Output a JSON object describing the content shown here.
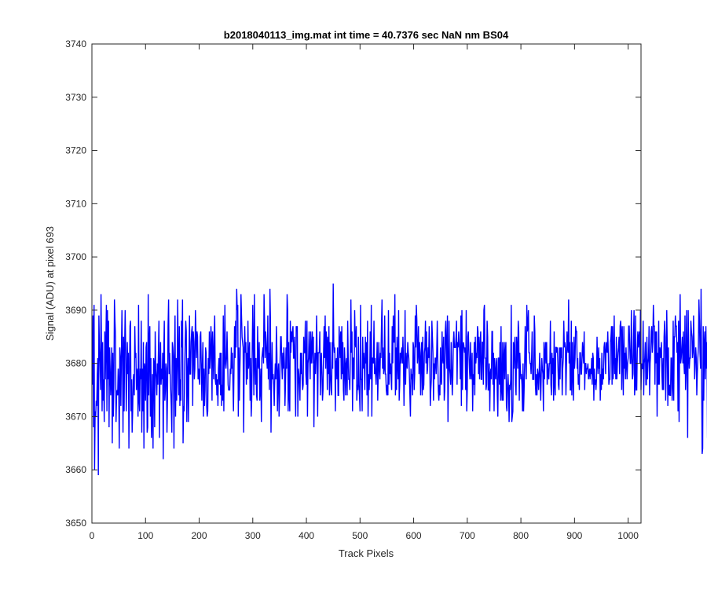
{
  "chart_data": {
    "type": "line",
    "title": "b2018040113_img.mat int time = 40.7376 sec  NaN nm BS04",
    "xlabel": "Track Pixels",
    "ylabel": "Signal (ADU) at pixel 693",
    "xlim": [
      0,
      1024
    ],
    "ylim": [
      3650,
      3740
    ],
    "xticks": [
      0,
      100,
      200,
      300,
      400,
      500,
      600,
      700,
      800,
      900,
      1000
    ],
    "yticks": [
      3650,
      3660,
      3670,
      3680,
      3690,
      3700,
      3710,
      3720,
      3730,
      3740
    ],
    "grid": false,
    "legend": "none",
    "series_color": "#0000ff",
    "series": [
      {
        "x_start": 1,
        "x_step": 1,
        "y": [
          3676,
          3689,
          3668,
          3691,
          3660,
          3671,
          3670,
          3673,
          3672,
          3678,
          3681,
          3659,
          3689,
          3683,
          3680,
          3675,
          3693,
          3682,
          3671,
          3684,
          3673,
          3677,
          3669,
          3686,
          3677,
          3684,
          3691,
          3671,
          3690,
          3677,
          3688,
          3668,
          3683,
          3679,
          3674,
          3677,
          3683,
          3665,
          3682,
          3670,
          3676,
          3692,
          3688,
          3685,
          3669,
          3674,
          3675,
          3674,
          3679,
          3676,
          3664,
          3683,
          3681,
          3672,
          3682,
          3690,
          3681,
          3667,
          3685,
          3671,
          3683,
          3690,
          3683,
          3671,
          3677,
          3684,
          3678,
          3682,
          3664,
          3677,
          3687,
          3688,
          3671,
          3677,
          3667,
          3671,
          3677,
          3678,
          3674,
          3687,
          3681,
          3682,
          3675,
          3678,
          3679,
          3670,
          3691,
          3673,
          3671,
          3679,
          3677,
          3688,
          3667,
          3679,
          3671,
          3684,
          3664,
          3680,
          3679,
          3673,
          3683,
          3684,
          3667,
          3668,
          3693,
          3674,
          3684,
          3687,
          3670,
          3681,
          3666,
          3670,
          3678,
          3664,
          3681,
          3680,
          3668,
          3686,
          3679,
          3677,
          3674,
          3680,
          3676,
          3682,
          3688,
          3666,
          3679,
          3684,
          3676,
          3679,
          3677,
          3682,
          3662,
          3682,
          3688,
          3673,
          3675,
          3680,
          3679,
          3667,
          3674,
          3687,
          3692,
          3678,
          3682,
          3678,
          3675,
          3672,
          3667,
          3684,
          3683,
          3681,
          3664,
          3681,
          3689,
          3670,
          3681,
          3673,
          3679,
          3692,
          3680,
          3674,
          3687,
          3672,
          3677,
          3673,
          3688,
          3683,
          3692,
          3665,
          3672,
          3671,
          3679,
          3684,
          3688,
          3686,
          3669,
          3678,
          3681,
          3669,
          3680,
          3689,
          3678,
          3678,
          3684,
          3686,
          3687,
          3672,
          3686,
          3684,
          3677,
          3679,
          3690,
          3686,
          3681,
          3686,
          3685,
          3677,
          3679,
          3677,
          3676,
          3685,
          3686,
          3679,
          3673,
          3680,
          3684,
          3670,
          3679,
          3672,
          3675,
          3683,
          3682,
          3672,
          3670,
          3671,
          3681,
          3678,
          3686,
          3679,
          3681,
          3687,
          3684,
          3673,
          3686,
          3682,
          3677,
          3685,
          3689,
          3677,
          3676,
          3678,
          3674,
          3677,
          3672,
          3679,
          3681,
          3676,
          3682,
          3674,
          3682,
          3672,
          3676,
          3673,
          3689,
          3671,
          3683,
          3691,
          3680,
          3679,
          3681,
          3686,
          3681,
          3676,
          3675,
          3675,
          3675,
          3679,
          3678,
          3683,
          3679,
          3682,
          3676,
          3671,
          3679,
          3687,
          3681,
          3688,
          3683,
          3694,
          3690,
          3691,
          3670,
          3683,
          3673,
          3679,
          3684,
          3693,
          3689,
          3685,
          3684,
          3683,
          3667,
          3680,
          3687,
          3682,
          3684,
          3676,
          3682,
          3677,
          3688,
          3679,
          3681,
          3684,
          3673,
          3681,
          3670,
          3673,
          3683,
          3691,
          3683,
          3674,
          3693,
          3680,
          3676,
          3681,
          3674,
          3673,
          3687,
          3680,
          3679,
          3684,
          3673,
          3675,
          3679,
          3669,
          3681,
          3682,
          3683,
          3680,
          3693,
          3688,
          3681,
          3686,
          3684,
          3681,
          3679,
          3689,
          3677,
          3682,
          3675,
          3694,
          3688,
          3667,
          3677,
          3684,
          3677,
          3678,
          3676,
          3672,
          3677,
          3680,
          3677,
          3687,
          3682,
          3671,
          3678,
          3680,
          3670,
          3674,
          3681,
          3685,
          3685,
          3680,
          3677,
          3682,
          3679,
          3683,
          3680,
          3672,
          3676,
          3683,
          3679,
          3693,
          3690,
          3671,
          3684,
          3674,
          3671,
          3688,
          3682,
          3686,
          3684,
          3686,
          3687,
          3681,
          3681,
          3685,
          3676,
          3670,
          3687,
          3686,
          3687,
          3670,
          3679,
          3678,
          3676,
          3673,
          3682,
          3678,
          3682,
          3677,
          3675,
          3676,
          3685,
          3682,
          3682,
          3688,
          3678,
          3676,
          3688,
          3670,
          3680,
          3681,
          3686,
          3681,
          3677,
          3686,
          3680,
          3683,
          3686,
          3680,
          3685,
          3668,
          3678,
          3682,
          3678,
          3681,
          3689,
          3682,
          3670,
          3682,
          3682,
          3682,
          3686,
          3674,
          3679,
          3682,
          3678,
          3673,
          3675,
          3682,
          3687,
          3681,
          3689,
          3679,
          3686,
          3684,
          3675,
          3685,
          3678,
          3687,
          3674,
          3684,
          3678,
          3675,
          3674,
          3684,
          3679,
          3695,
          3684,
          3682,
          3683,
          3671,
          3680,
          3681,
          3677,
          3683,
          3674,
          3674,
          3687,
          3684,
          3681,
          3686,
          3677,
          3687,
          3678,
          3684,
          3675,
          3673,
          3683,
          3680,
          3674,
          3680,
          3681,
          3674,
          3688,
          3681,
          3677,
          3677,
          3675,
          3682,
          3692,
          3682,
          3686,
          3671,
          3681,
          3681,
          3677,
          3690,
          3684,
          3683,
          3687,
          3673,
          3676,
          3675,
          3685,
          3676,
          3674,
          3671,
          3691,
          3677,
          3677,
          3671,
          3685,
          3679,
          3682,
          3680,
          3675,
          3685,
          3680,
          3684,
          3674,
          3688,
          3670,
          3678,
          3675,
          3678,
          3686,
          3677,
          3691,
          3670,
          3681,
          3681,
          3680,
          3688,
          3678,
          3681,
          3678,
          3676,
          3680,
          3684,
          3673,
          3678,
          3684,
          3679,
          3677,
          3682,
          3681,
          3687,
          3692,
          3679,
          3683,
          3678,
          3679,
          3689,
          3678,
          3678,
          3675,
          3674,
          3676,
          3674,
          3690,
          3676,
          3682,
          3678,
          3680,
          3677,
          3675,
          3687,
          3680,
          3689,
          3684,
          3684,
          3693,
          3674,
          3683,
          3675,
          3685,
          3680,
          3677,
          3690,
          3673,
          3676,
          3682,
          3680,
          3682,
          3683,
          3680,
          3685,
          3680,
          3672,
          3679,
          3690,
          3676,
          3682,
          3680,
          3679,
          3684,
          3682,
          3681,
          3678,
          3674,
          3670,
          3679,
          3677,
          3678,
          3674,
          3684,
          3683,
          3675,
          3678,
          3689,
          3683,
          3691,
          3688,
          3680,
          3682,
          3687,
          3678,
          3684,
          3681,
          3674,
          3682,
          3684,
          3674,
          3685,
          3675,
          3676,
          3682,
          3683,
          3688,
          3680,
          3686,
          3678,
          3679,
          3683,
          3681,
          3687,
          3682,
          3672,
          3675,
          3677,
          3688,
          3685,
          3682,
          3673,
          3680,
          3677,
          3681,
          3681,
          3678,
          3682,
          3688,
          3681,
          3675,
          3673,
          3676,
          3674,
          3683,
          3677,
          3676,
          3686,
          3681,
          3680,
          3685,
          3673,
          3675,
          3686,
          3688,
          3683,
          3679,
          3689,
          3669,
          3678,
          3688,
          3679,
          3678,
          3676,
          3684,
          3679,
          3674,
          3677,
          3684,
          3686,
          3683,
          3683,
          3683,
          3685,
          3688,
          3676,
          3684,
          3683,
          3686,
          3684,
          3682,
          3677,
          3689,
          3672,
          3690,
          3675,
          3683,
          3684,
          3683,
          3682,
          3683,
          3675,
          3690,
          3671,
          3675,
          3685,
          3686,
          3682,
          3679,
          3677,
          3684,
          3678,
          3677,
          3682,
          3671,
          3678,
          3676,
          3684,
          3674,
          3685,
          3680,
          3682,
          3681,
          3687,
          3686,
          3678,
          3685,
          3677,
          3683,
          3686,
          3677,
          3677,
          3684,
          3684,
          3676,
          3690,
          3691,
          3681,
          3681,
          3675,
          3676,
          3688,
          3685,
          3675,
          3675,
          3680,
          3671,
          3678,
          3679,
          3677,
          3686,
          3686,
          3676,
          3682,
          3671,
          3681,
          3678,
          3677,
          3680,
          3681,
          3674,
          3670,
          3681,
          3681,
          3676,
          3684,
          3673,
          3687,
          3675,
          3673,
          3684,
          3673,
          3681,
          3684,
          3677,
          3682,
          3684,
          3672,
          3671,
          3676,
          3678,
          3675,
          3669,
          3676,
          3675,
          3677,
          3691,
          3669,
          3670,
          3671,
          3684,
          3679,
          3683,
          3685,
          3676,
          3674,
          3685,
          3683,
          3679,
          3688,
          3686,
          3673,
          3682,
          3679,
          3677,
          3678,
          3676,
          3671,
          3680,
          3671,
          3675,
          3680,
          3687,
          3681,
          3677,
          3691,
          3686,
          3687,
          3690,
          3682,
          3682,
          3680,
          3680,
          3678,
          3681,
          3686,
          3677,
          3677,
          3677,
          3689,
          3686,
          3676,
          3674,
          3678,
          3674,
          3679,
          3678,
          3675,
          3678,
          3682,
          3677,
          3673,
          3678,
          3681,
          3679,
          3678,
          3671,
          3684,
          3677,
          3682,
          3684,
          3680,
          3684,
          3676,
          3680,
          3678,
          3677,
          3680,
          3680,
          3688,
          3676,
          3674,
          3682,
          3678,
          3681,
          3673,
          3686,
          3676,
          3674,
          3683,
          3683,
          3682,
          3683,
          3680,
          3676,
          3675,
          3683,
          3677,
          3683,
          3681,
          3683,
          3674,
          3679,
          3681,
          3688,
          3683,
          3684,
          3683,
          3674,
          3680,
          3686,
          3683,
          3682,
          3692,
          3680,
          3684,
          3675,
          3675,
          3688,
          3674,
          3684,
          3678,
          3673,
          3685,
          3679,
          3681,
          3687,
          3686,
          3686,
          3679,
          3681,
          3676,
          3678,
          3675,
          3682,
          3682,
          3678,
          3678,
          3681,
          3684,
          3682,
          3680,
          3686,
          3675,
          3680,
          3680,
          3678,
          3679,
          3679,
          3680,
          3677,
          3678,
          3679,
          3677,
          3679,
          3678,
          3681,
          3676,
          3682,
          3681,
          3673,
          3679,
          3676,
          3677,
          3675,
          3677,
          3685,
          3680,
          3678,
          3683,
          3679,
          3681,
          3673,
          3678,
          3675,
          3682,
          3676,
          3679,
          3677,
          3683,
          3684,
          3682,
          3678,
          3684,
          3683,
          3682,
          3686,
          3682,
          3676,
          3677,
          3677,
          3684,
          3685,
          3687,
          3676,
          3687,
          3677,
          3681,
          3689,
          3678,
          3681,
          3677,
          3685,
          3677,
          3680,
          3682,
          3683,
          3685,
          3678,
          3687,
          3688,
          3686,
          3675,
          3687,
          3681,
          3674,
          3687,
          3679,
          3682,
          3677,
          3683,
          3680,
          3677,
          3680,
          3681,
          3687,
          3687,
          3683,
          3680,
          3680,
          3690,
          3682,
          3677,
          3678,
          3685,
          3690,
          3674,
          3676,
          3689,
          3675,
          3675,
          3682,
          3686,
          3683,
          3685,
          3686,
          3680,
          3690,
          3675,
          3680,
          3679,
          3679,
          3688,
          3674,
          3680,
          3681,
          3684,
          3676,
          3676,
          3685,
          3677,
          3680,
          3681,
          3687,
          3674,
          3680,
          3682,
          3686,
          3687,
          3682,
          3684,
          3691,
          3687,
          3687,
          3676,
          3686,
          3680,
          3686,
          3670,
          3682,
          3676,
          3688,
          3676,
          3683,
          3681,
          3682,
          3684,
          3678,
          3675,
          3681,
          3675,
          3685,
          3688,
          3685,
          3673,
          3680,
          3690,
          3683,
          3672,
          3683,
          3674,
          3676,
          3674,
          3674,
          3681,
          3681,
          3673,
          3676,
          3688,
          3673,
          3685,
          3685,
          3689,
          3687,
          3687,
          3682,
          3684,
          3671,
          3688,
          3669,
          3684,
          3693,
          3680,
          3681,
          3683,
          3685,
          3680,
          3686,
          3680,
          3678,
          3689,
          3675,
          3678,
          3690,
          3682,
          3666,
          3690,
          3682,
          3679,
          3681,
          3681,
          3688,
          3686,
          3685,
          3681,
          3682,
          3689,
          3684,
          3677,
          3680,
          3683,
          3681,
          3674,
          3678,
          3681,
          3683,
          3692,
          3688,
          3682,
          3679,
          3694,
          3678,
          3663,
          3664,
          3687,
          3673,
          3684,
          3686,
          3677,
          3687,
          3679,
          3684,
          3666,
          3681,
          3694,
          3687
        ]
      }
    ]
  }
}
